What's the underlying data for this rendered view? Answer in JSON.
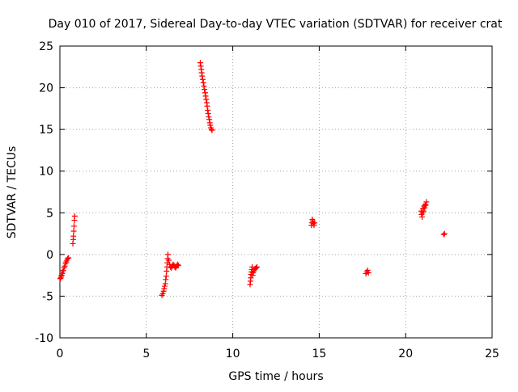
{
  "chart_data": {
    "type": "scatter",
    "title": "Day 010 of 2017, Sidereal Day-to-day VTEC variation (SDTVAR) for receiver crat",
    "xlabel": "GPS time / hours",
    "ylabel": "SDTVAR / TECUs",
    "xlim": [
      0,
      25
    ],
    "ylim": [
      -10,
      25
    ],
    "xticks": [
      0,
      5,
      10,
      15,
      20,
      25
    ],
    "yticks": [
      -10,
      -5,
      0,
      5,
      10,
      15,
      20,
      25
    ],
    "xtick_labels": [
      "0",
      "5",
      "10",
      "15",
      "20",
      "25"
    ],
    "ytick_labels": [
      "-10",
      "-5",
      "0",
      "5",
      "10",
      "15",
      "20",
      "25"
    ],
    "grid": true,
    "marker": "+",
    "series": [
      {
        "name": "SDTVAR",
        "color": "#ff0000",
        "points": [
          [
            0.02,
            -2.9
          ],
          [
            0.05,
            -2.8
          ],
          [
            0.08,
            -2.6
          ],
          [
            0.1,
            -2.5
          ],
          [
            0.13,
            -2.3
          ],
          [
            0.16,
            -2.1
          ],
          [
            0.2,
            -1.9
          ],
          [
            0.24,
            -1.6
          ],
          [
            0.28,
            -1.4
          ],
          [
            0.32,
            -1.1
          ],
          [
            0.36,
            -0.9
          ],
          [
            0.4,
            -0.7
          ],
          [
            0.45,
            -0.5
          ],
          [
            0.5,
            -0.4
          ],
          [
            0.75,
            1.3
          ],
          [
            0.77,
            1.8
          ],
          [
            0.78,
            2.2
          ],
          [
            0.8,
            2.8
          ],
          [
            0.82,
            3.4
          ],
          [
            0.84,
            4.1
          ],
          [
            0.86,
            4.6
          ],
          [
            5.9,
            -4.9
          ],
          [
            5.95,
            -4.7
          ],
          [
            6.0,
            -4.4
          ],
          [
            6.03,
            -4.1
          ],
          [
            6.06,
            -3.8
          ],
          [
            6.1,
            -3.5
          ],
          [
            6.12,
            -3.0
          ],
          [
            6.15,
            -2.6
          ],
          [
            6.17,
            -2.0
          ],
          [
            6.19,
            -1.5
          ],
          [
            6.21,
            -1.0
          ],
          [
            6.23,
            -0.5
          ],
          [
            6.25,
            0.0
          ],
          [
            6.3,
            -0.7
          ],
          [
            6.35,
            -1.2
          ],
          [
            6.4,
            -1.5
          ],
          [
            6.45,
            -1.6
          ],
          [
            6.5,
            -1.4
          ],
          [
            6.55,
            -1.2
          ],
          [
            6.6,
            -1.3
          ],
          [
            6.65,
            -1.5
          ],
          [
            6.7,
            -1.6
          ],
          [
            6.75,
            -1.4
          ],
          [
            6.8,
            -1.2
          ],
          [
            6.85,
            -1.3
          ],
          [
            8.12,
            23.0
          ],
          [
            8.15,
            22.6
          ],
          [
            8.18,
            22.2
          ],
          [
            8.2,
            21.8
          ],
          [
            8.23,
            21.4
          ],
          [
            8.26,
            21.0
          ],
          [
            8.3,
            20.6
          ],
          [
            8.33,
            20.2
          ],
          [
            8.36,
            19.8
          ],
          [
            8.4,
            19.4
          ],
          [
            8.43,
            19.0
          ],
          [
            8.46,
            18.6
          ],
          [
            8.5,
            18.2
          ],
          [
            8.52,
            17.8
          ],
          [
            8.55,
            17.3
          ],
          [
            8.58,
            16.9
          ],
          [
            8.61,
            16.5
          ],
          [
            8.64,
            16.2
          ],
          [
            8.67,
            15.8
          ],
          [
            8.7,
            15.5
          ],
          [
            8.73,
            15.2
          ],
          [
            8.77,
            15.0
          ],
          [
            8.8,
            14.9
          ],
          [
            11.0,
            -3.6
          ],
          [
            11.02,
            -3.2
          ],
          [
            11.04,
            -2.8
          ],
          [
            11.06,
            -2.4
          ],
          [
            11.08,
            -2.1
          ],
          [
            11.1,
            -1.8
          ],
          [
            11.12,
            -1.5
          ],
          [
            11.15,
            -2.5
          ],
          [
            11.18,
            -2.2
          ],
          [
            11.2,
            -2.0
          ],
          [
            11.25,
            -1.8
          ],
          [
            11.3,
            -1.7
          ],
          [
            11.35,
            -1.6
          ],
          [
            11.4,
            -1.5
          ],
          [
            14.55,
            3.5
          ],
          [
            14.58,
            3.8
          ],
          [
            14.6,
            4.2
          ],
          [
            14.63,
            4.0
          ],
          [
            14.66,
            3.7
          ],
          [
            14.7,
            3.5
          ],
          [
            14.72,
            3.8
          ],
          [
            17.7,
            -2.3
          ],
          [
            17.75,
            -2.1
          ],
          [
            17.8,
            -1.9
          ],
          [
            17.85,
            -2.2
          ],
          [
            20.9,
            5.2
          ],
          [
            20.92,
            4.8
          ],
          [
            20.95,
            4.5
          ],
          [
            20.98,
            5.0
          ],
          [
            21.0,
            5.5
          ],
          [
            21.03,
            5.2
          ],
          [
            21.06,
            5.8
          ],
          [
            21.1,
            5.6
          ],
          [
            21.13,
            6.0
          ],
          [
            21.16,
            5.9
          ],
          [
            21.2,
            6.3
          ],
          [
            22.2,
            2.4
          ],
          [
            22.25,
            2.5
          ]
        ]
      }
    ]
  }
}
